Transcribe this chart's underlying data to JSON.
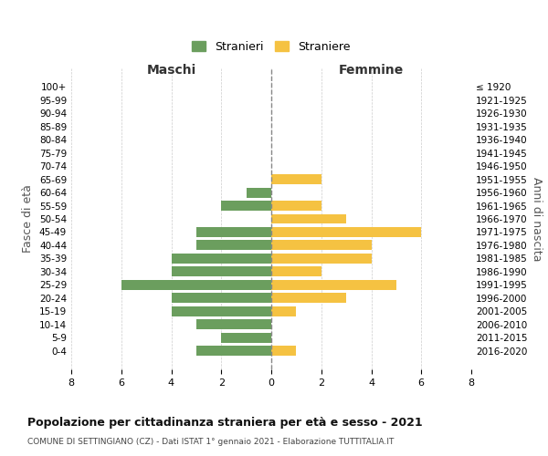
{
  "age_groups": [
    "100+",
    "95-99",
    "90-94",
    "85-89",
    "80-84",
    "75-79",
    "70-74",
    "65-69",
    "60-64",
    "55-59",
    "50-54",
    "45-49",
    "40-44",
    "35-39",
    "30-34",
    "25-29",
    "20-24",
    "15-19",
    "10-14",
    "5-9",
    "0-4"
  ],
  "birth_years": [
    "≤ 1920",
    "1921-1925",
    "1926-1930",
    "1931-1935",
    "1936-1940",
    "1941-1945",
    "1946-1950",
    "1951-1955",
    "1956-1960",
    "1961-1965",
    "1966-1970",
    "1971-1975",
    "1976-1980",
    "1981-1985",
    "1986-1990",
    "1991-1995",
    "1996-2000",
    "2001-2005",
    "2006-2010",
    "2011-2015",
    "2016-2020"
  ],
  "maschi": [
    0,
    0,
    0,
    0,
    0,
    0,
    0,
    0,
    1,
    2,
    0,
    3,
    3,
    4,
    4,
    6,
    4,
    4,
    3,
    2,
    3
  ],
  "femmine": [
    0,
    0,
    0,
    0,
    0,
    0,
    0,
    2,
    0,
    2,
    3,
    6,
    4,
    4,
    2,
    5,
    3,
    1,
    0,
    0,
    1
  ],
  "color_maschi": "#6b9e5e",
  "color_femmine": "#f5c242",
  "title": "Popolazione per cittadinanza straniera per età e sesso - 2021",
  "subtitle": "COMUNE DI SETTINGIANO (CZ) - Dati ISTAT 1° gennaio 2021 - Elaborazione TUTTITALIA.IT",
  "xlabel_left": "Maschi",
  "xlabel_right": "Femmine",
  "ylabel_left": "Fasce di età",
  "ylabel_right": "Anni di nascita",
  "legend_maschi": "Stranieri",
  "legend_femmine": "Straniere",
  "xlim": 8,
  "background_color": "#ffffff",
  "grid_color": "#cccccc"
}
